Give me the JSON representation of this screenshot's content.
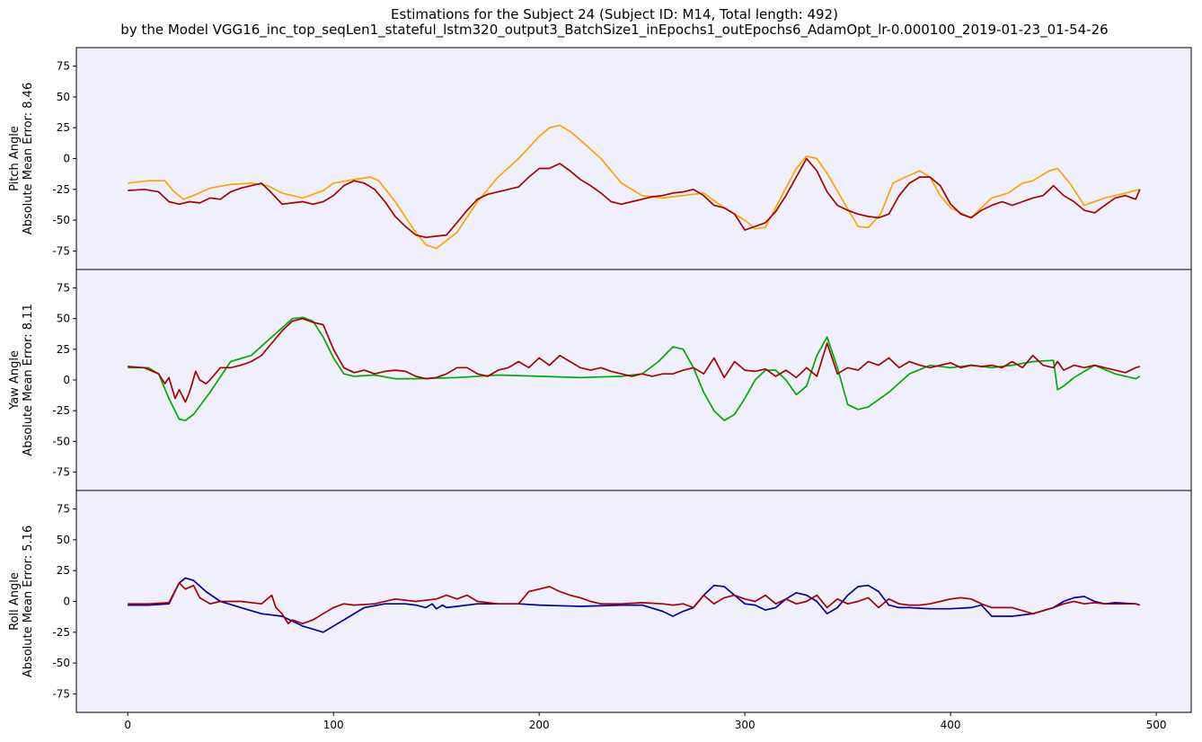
{
  "title": {
    "line1": "Estimations for the Subject 24 (Subject ID: M14, Total length: 492)",
    "line2": "by the Model VGG16_inc_top_seqLen1_stateful_lstm320_output3_BatchSize1_inEpochs1_outEpochs6_AdamOpt_lr-0.000100_2019-01-23_01-54-26"
  },
  "colors": {
    "background": "#f0f0fc",
    "pitch": "#ffa500",
    "yaw": "#00aa00",
    "roll": "#0000aa",
    "estimate": "#aa0000"
  },
  "chart_data": [
    {
      "type": "line",
      "ylabel_line1": "Pitch Angle",
      "ylabel_line2": "Absolute Mean Error: 8.46",
      "ylim": [
        -90,
        90
      ],
      "xlim": [
        -25,
        517
      ],
      "yticks": [
        -75,
        -50,
        -25,
        0,
        25,
        50,
        75
      ],
      "xticks": [
        0,
        100,
        200,
        300,
        400,
        500
      ],
      "grid": false,
      "series": [
        {
          "role": "ground-truth",
          "color": "#ffa500",
          "x": [
            0,
            10,
            18,
            22,
            27,
            32,
            40,
            50,
            60,
            68,
            75,
            85,
            95,
            100,
            110,
            118,
            122,
            130,
            140,
            145,
            150,
            160,
            170,
            180,
            190,
            200,
            205,
            210,
            215,
            220,
            230,
            240,
            250,
            260,
            270,
            280,
            290,
            300,
            305,
            310,
            318,
            325,
            330,
            335,
            340,
            348,
            355,
            360,
            366,
            372,
            378,
            385,
            390,
            395,
            400,
            410,
            420,
            428,
            435,
            440,
            448,
            452,
            458,
            465,
            475,
            485,
            492
          ],
          "y": [
            -20,
            -18,
            -18,
            -26,
            -33,
            -30,
            -24,
            -21,
            -20,
            -22,
            -28,
            -32,
            -26,
            -20,
            -17,
            -15,
            -18,
            -35,
            -60,
            -70,
            -73,
            -60,
            -35,
            -15,
            0,
            18,
            25,
            27,
            22,
            15,
            0,
            -20,
            -30,
            -32,
            -30,
            -28,
            -40,
            -50,
            -57,
            -56,
            -30,
            -8,
            2,
            0,
            -12,
            -35,
            -55,
            -56,
            -45,
            -20,
            -15,
            -10,
            -15,
            -30,
            -40,
            -48,
            -32,
            -28,
            -20,
            -18,
            -10,
            -8,
            -20,
            -38,
            -32,
            -28,
            -25
          ]
        },
        {
          "role": "estimate",
          "color": "#aa0000",
          "x": [
            0,
            8,
            15,
            20,
            25,
            30,
            35,
            40,
            45,
            50,
            55,
            60,
            65,
            70,
            75,
            80,
            85,
            90,
            95,
            100,
            105,
            110,
            115,
            120,
            125,
            130,
            135,
            140,
            145,
            150,
            155,
            160,
            165,
            170,
            175,
            180,
            185,
            190,
            195,
            200,
            205,
            210,
            215,
            220,
            225,
            230,
            235,
            240,
            245,
            250,
            255,
            260,
            265,
            270,
            275,
            280,
            285,
            290,
            295,
            300,
            305,
            310,
            315,
            320,
            325,
            330,
            335,
            340,
            345,
            350,
            355,
            360,
            365,
            370,
            375,
            380,
            385,
            390,
            395,
            400,
            405,
            410,
            415,
            420,
            425,
            430,
            435,
            440,
            445,
            450,
            455,
            460,
            465,
            470,
            475,
            480,
            485,
            490,
            492
          ],
          "y": [
            -26,
            -25,
            -27,
            -35,
            -37,
            -35,
            -36,
            -32,
            -33,
            -27,
            -24,
            -22,
            -20,
            -28,
            -37,
            -36,
            -35,
            -37,
            -35,
            -30,
            -22,
            -18,
            -20,
            -25,
            -35,
            -47,
            -55,
            -62,
            -64,
            -63,
            -62,
            -52,
            -42,
            -33,
            -29,
            -27,
            -25,
            -23,
            -15,
            -8,
            -8,
            -4,
            -10,
            -17,
            -22,
            -28,
            -35,
            -37,
            -35,
            -33,
            -31,
            -30,
            -28,
            -27,
            -25,
            -30,
            -38,
            -40,
            -45,
            -58,
            -55,
            -52,
            -43,
            -30,
            -15,
            0,
            -10,
            -27,
            -38,
            -42,
            -45,
            -47,
            -48,
            -45,
            -30,
            -20,
            -15,
            -15,
            -22,
            -37,
            -45,
            -48,
            -42,
            -38,
            -35,
            -38,
            -35,
            -32,
            -30,
            -22,
            -30,
            -35,
            -42,
            -44,
            -38,
            -32,
            -30,
            -33,
            -25
          ]
        }
      ]
    },
    {
      "type": "line",
      "ylabel_line1": "Yaw Angle",
      "ylabel_line2": "Absolute Mean Error: 8.11",
      "ylim": [
        -90,
        90
      ],
      "xlim": [
        -25,
        517
      ],
      "yticks": [
        -75,
        -50,
        -25,
        0,
        25,
        50,
        75
      ],
      "xticks": [
        0,
        100,
        200,
        300,
        400,
        500
      ],
      "grid": false,
      "series": [
        {
          "role": "ground-truth",
          "color": "#00aa00",
          "x": [
            0,
            10,
            15,
            20,
            25,
            28,
            32,
            40,
            50,
            60,
            70,
            80,
            85,
            90,
            95,
            100,
            105,
            110,
            120,
            130,
            140,
            160,
            180,
            200,
            220,
            240,
            250,
            258,
            265,
            270,
            275,
            280,
            285,
            290,
            295,
            300,
            305,
            310,
            315,
            320,
            325,
            330,
            335,
            340,
            345,
            350,
            355,
            360,
            370,
            380,
            390,
            400,
            410,
            420,
            430,
            440,
            450,
            452,
            455,
            460,
            470,
            480,
            490,
            492
          ],
          "y": [
            10,
            10,
            5,
            -15,
            -32,
            -33,
            -28,
            -10,
            15,
            20,
            35,
            50,
            51,
            48,
            35,
            18,
            5,
            3,
            4,
            1,
            1,
            2,
            4,
            3,
            2,
            3,
            5,
            15,
            27,
            25,
            10,
            -10,
            -25,
            -33,
            -28,
            -15,
            0,
            8,
            8,
            0,
            -12,
            -5,
            20,
            35,
            10,
            -20,
            -24,
            -22,
            -10,
            5,
            12,
            10,
            12,
            10,
            12,
            15,
            16,
            -8,
            -5,
            2,
            12,
            5,
            1,
            3
          ]
        },
        {
          "role": "estimate",
          "color": "#aa0000",
          "x": [
            0,
            8,
            15,
            18,
            20,
            23,
            25,
            28,
            30,
            33,
            35,
            38,
            40,
            45,
            50,
            55,
            60,
            65,
            70,
            75,
            80,
            85,
            90,
            95,
            100,
            105,
            110,
            115,
            120,
            125,
            130,
            135,
            140,
            145,
            150,
            155,
            160,
            165,
            170,
            175,
            180,
            185,
            190,
            195,
            200,
            205,
            210,
            215,
            220,
            225,
            230,
            235,
            240,
            245,
            250,
            255,
            260,
            265,
            270,
            275,
            280,
            285,
            290,
            295,
            300,
            305,
            310,
            315,
            320,
            325,
            330,
            335,
            340,
            345,
            350,
            355,
            360,
            365,
            370,
            375,
            380,
            385,
            390,
            395,
            400,
            405,
            410,
            415,
            420,
            425,
            430,
            435,
            440,
            445,
            450,
            452,
            455,
            460,
            465,
            470,
            475,
            480,
            485,
            490,
            492
          ],
          "y": [
            11,
            10,
            5,
            -3,
            2,
            -15,
            -8,
            -18,
            -10,
            7,
            0,
            -3,
            0,
            10,
            10,
            12,
            15,
            20,
            30,
            40,
            48,
            50,
            47,
            45,
            25,
            10,
            6,
            8,
            5,
            7,
            8,
            7,
            3,
            1,
            2,
            5,
            10,
            10,
            5,
            3,
            8,
            10,
            15,
            10,
            18,
            12,
            20,
            15,
            10,
            8,
            10,
            7,
            5,
            3,
            5,
            3,
            5,
            5,
            8,
            10,
            5,
            18,
            2,
            15,
            8,
            7,
            9,
            3,
            8,
            2,
            10,
            3,
            30,
            5,
            10,
            8,
            15,
            12,
            18,
            10,
            15,
            12,
            10,
            12,
            14,
            10,
            12,
            11,
            12,
            10,
            15,
            10,
            20,
            12,
            10,
            15,
            8,
            12,
            10,
            12,
            10,
            8,
            6,
            10,
            11
          ]
        }
      ]
    },
    {
      "type": "line",
      "ylabel_line1": "Roll Angle",
      "ylabel_line2": "Absolute Mean Error: 5.16",
      "ylim": [
        -90,
        90
      ],
      "xlim": [
        -25,
        517
      ],
      "yticks": [
        -75,
        -50,
        -25,
        0,
        25,
        50,
        75
      ],
      "xticks": [
        0,
        100,
        200,
        300,
        400,
        500
      ],
      "grid": false,
      "series": [
        {
          "role": "ground-truth",
          "color": "#0000aa",
          "x": [
            0,
            10,
            20,
            25,
            28,
            32,
            38,
            45,
            55,
            65,
            75,
            85,
            95,
            105,
            115,
            125,
            135,
            140,
            145,
            148,
            150,
            153,
            155,
            160,
            170,
            180,
            190,
            200,
            220,
            240,
            250,
            260,
            265,
            270,
            275,
            280,
            285,
            290,
            295,
            300,
            305,
            310,
            315,
            320,
            325,
            330,
            335,
            340,
            345,
            350,
            355,
            360,
            365,
            370,
            375,
            380,
            390,
            400,
            410,
            415,
            420,
            430,
            440,
            450,
            455,
            460,
            465,
            470,
            475,
            480,
            490,
            492
          ],
          "y": [
            -3,
            -3,
            -2,
            15,
            19,
            17,
            8,
            0,
            -5,
            -10,
            -12,
            -20,
            -25,
            -15,
            -5,
            -2,
            -2,
            -3,
            -5,
            -2,
            -6,
            -3,
            -5,
            -4,
            -2,
            -2,
            -2,
            -3,
            -4,
            -3,
            -3,
            -8,
            -12,
            -8,
            -5,
            5,
            13,
            12,
            5,
            -2,
            -3,
            -7,
            -5,
            2,
            7,
            5,
            0,
            -10,
            -5,
            5,
            12,
            13,
            8,
            -3,
            -5,
            -5,
            -6,
            -6,
            -5,
            -3,
            -12,
            -12,
            -10,
            -5,
            0,
            3,
            4,
            0,
            -2,
            -1,
            -2,
            -3
          ]
        },
        {
          "role": "estimate",
          "color": "#aa0000",
          "x": [
            0,
            10,
            20,
            25,
            28,
            32,
            35,
            40,
            45,
            55,
            65,
            70,
            72,
            75,
            78,
            80,
            85,
            90,
            95,
            100,
            105,
            110,
            120,
            130,
            140,
            150,
            155,
            160,
            165,
            170,
            180,
            190,
            195,
            200,
            205,
            210,
            215,
            220,
            225,
            230,
            240,
            250,
            260,
            265,
            270,
            275,
            280,
            285,
            290,
            295,
            300,
            305,
            310,
            315,
            320,
            325,
            330,
            335,
            340,
            345,
            350,
            355,
            360,
            365,
            370,
            375,
            380,
            385,
            390,
            395,
            400,
            405,
            410,
            415,
            420,
            425,
            430,
            440,
            450,
            455,
            460,
            465,
            470,
            475,
            480,
            490,
            492
          ],
          "y": [
            -2,
            -2,
            -1,
            15,
            10,
            13,
            3,
            -2,
            0,
            0,
            -2,
            5,
            -5,
            -10,
            -18,
            -15,
            -18,
            -15,
            -10,
            -5,
            -2,
            -3,
            -2,
            2,
            0,
            2,
            5,
            2,
            5,
            0,
            -2,
            -2,
            8,
            10,
            12,
            8,
            5,
            3,
            0,
            -2,
            -2,
            -1,
            -2,
            -3,
            -2,
            -5,
            5,
            -2,
            3,
            5,
            2,
            0,
            5,
            -2,
            2,
            -2,
            0,
            5,
            -5,
            2,
            -2,
            0,
            3,
            -5,
            2,
            -2,
            -3,
            -3,
            -2,
            0,
            2,
            3,
            2,
            -2,
            -5,
            -5,
            -5,
            -10,
            -5,
            -2,
            0,
            -2,
            -1,
            -2,
            -2,
            -2,
            -3
          ]
        }
      ]
    }
  ]
}
